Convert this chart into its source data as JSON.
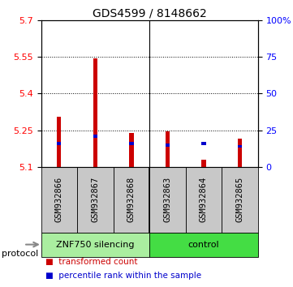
{
  "title": "GDS4599 / 8148662",
  "samples": [
    "GSM932866",
    "GSM932867",
    "GSM932868",
    "GSM932863",
    "GSM932864",
    "GSM932865"
  ],
  "group_labels": [
    "ZNF750 silencing",
    "control"
  ],
  "group_split": 3,
  "red_values": [
    5.305,
    5.545,
    5.238,
    5.245,
    5.13,
    5.215
  ],
  "blue_values": [
    5.195,
    5.225,
    5.195,
    5.19,
    5.195,
    5.185
  ],
  "ymin": 5.1,
  "ymax": 5.7,
  "yticks_left": [
    5.1,
    5.25,
    5.4,
    5.55,
    5.7
  ],
  "yticks_right_labels": [
    "0",
    "25",
    "50",
    "75",
    "100%"
  ],
  "bar_width": 0.12,
  "blue_bar_width": 0.12,
  "blue_bar_height": 0.012,
  "sample_bg_color": "#C8C8C8",
  "bar_red": "#CC0000",
  "bar_blue": "#0000CC",
  "legend_red": "transformed count",
  "legend_blue": "percentile rank within the sample",
  "protocol_label": "protocol",
  "group1_color": "#AAEEA0",
  "group2_color": "#44DD44",
  "title_fontsize": 10,
  "tick_fontsize": 8,
  "label_fontsize": 7.5
}
